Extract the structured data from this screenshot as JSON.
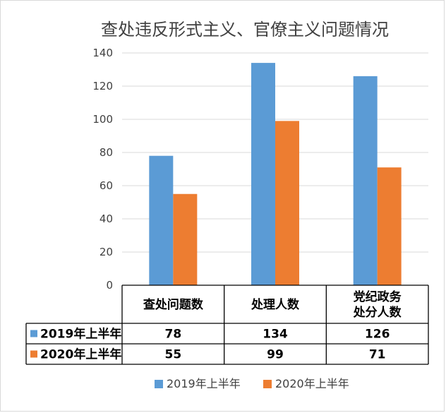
{
  "chart_data": {
    "type": "bar",
    "title": "查处违反形式主义、官僚主义问题情况",
    "categories": [
      [
        "查处问题数"
      ],
      [
        "处理人数"
      ],
      [
        "党纪政务",
        "处分人数"
      ]
    ],
    "series": [
      {
        "name": "2019年上半年",
        "values": [
          78,
          134,
          126
        ],
        "color": "#5b9bd5"
      },
      {
        "name": "2020年上半年",
        "values": [
          55,
          99,
          71
        ],
        "color": "#ed7d31"
      }
    ],
    "ylim": [
      0,
      140
    ],
    "yticks": [
      0,
      20,
      40,
      60,
      80,
      100,
      120,
      140
    ],
    "grid": true,
    "legend_position": "bottom",
    "data_table": true
  }
}
